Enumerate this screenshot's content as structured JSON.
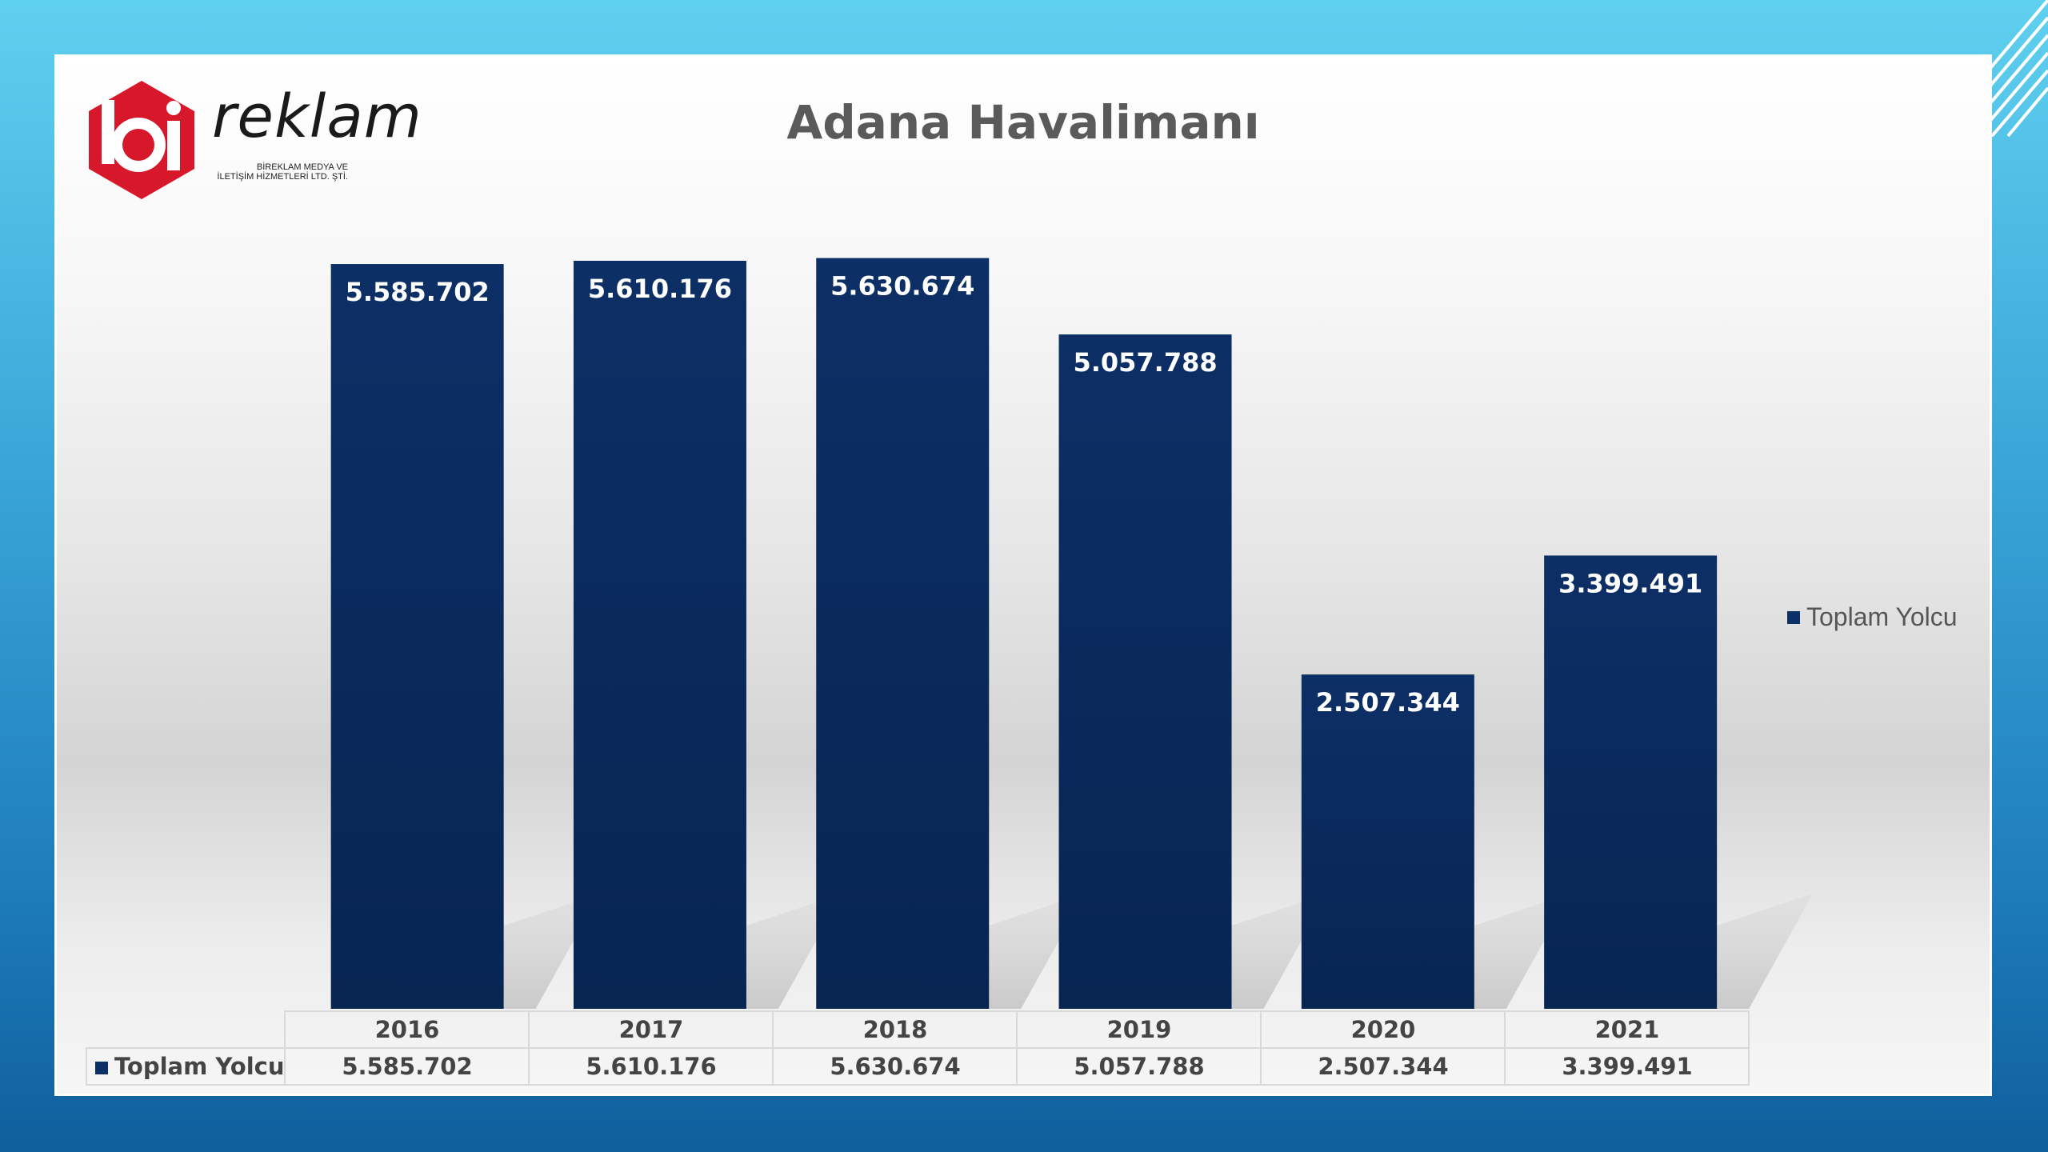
{
  "logo": {
    "word": "reklam",
    "subtitle_line1": "BİREKLAM MEDYA VE",
    "subtitle_line2": "İLETİŞİM HİZMETLERİ LTD. ŞTİ."
  },
  "colors": {
    "bar": "#0c2f66",
    "logo_red": "#d7182a",
    "title": "#5a5a5a"
  },
  "chart_data": {
    "type": "bar",
    "title": "Adana Havalimanı",
    "xlabel": "",
    "ylabel": "",
    "categories": [
      "2016",
      "2017",
      "2018",
      "2019",
      "2020",
      "2021"
    ],
    "series": [
      {
        "name": "Toplam Yolcu",
        "values": [
          5585702,
          5610176,
          5630674,
          5057788,
          2507344,
          3399491
        ],
        "labels": [
          "5.585.702",
          "5.610.176",
          "5.630.674",
          "5.057.788",
          "2.507.344",
          "3.399.491"
        ]
      }
    ],
    "ylim": [
      0,
      6000000
    ],
    "grid": false,
    "legend": "right",
    "data_table": true
  }
}
